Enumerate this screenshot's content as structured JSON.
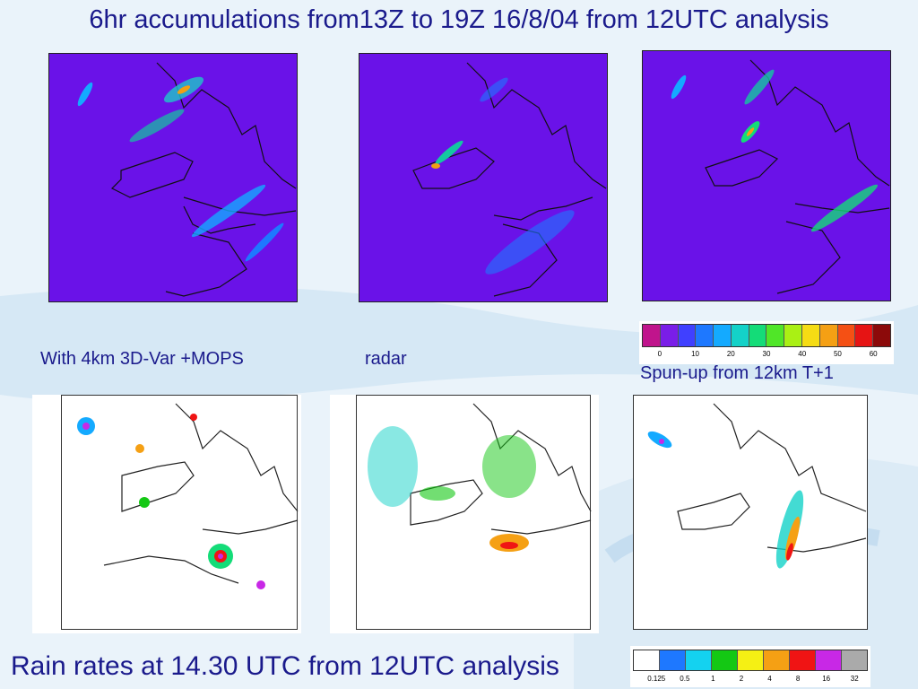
{
  "title": "6hr accumulations from13Z to 19Z 16/8/04 from 12UTC analysis",
  "captions": {
    "panel1": "With 4km 3D-Var +MOPS",
    "panel2": "radar",
    "panel3": "Spun-up from 12km T+1"
  },
  "bottom_title": "Rain rates at 14.30 UTC from 12UTC analysis",
  "accum_colorbar": {
    "colors": [
      "#c0148c",
      "#7a1ee8",
      "#4040ff",
      "#1e78ff",
      "#14aaff",
      "#14d2c8",
      "#14dc78",
      "#50e628",
      "#aaf014",
      "#f5dc14",
      "#f5a014",
      "#f55014",
      "#e61414",
      "#8c0a0a"
    ],
    "ticks": [
      "0",
      "10",
      "20",
      "30",
      "40",
      "50",
      "60"
    ]
  },
  "rate_colorbar": {
    "colors": [
      "#ffffff",
      "#1e78ff",
      "#14d2f0",
      "#14c814",
      "#f5f014",
      "#f5a014",
      "#f01414",
      "#c828e6",
      "#aaaaaa"
    ],
    "ticks": [
      "0.125",
      "0.5",
      "1",
      "2",
      "4",
      "8",
      "16",
      "32"
    ]
  },
  "map_colors": {
    "accum_bg": "#6a12e8",
    "rate_bg": "#ffffff",
    "coast_top": "#111111",
    "coast_bottom": "#222222"
  }
}
